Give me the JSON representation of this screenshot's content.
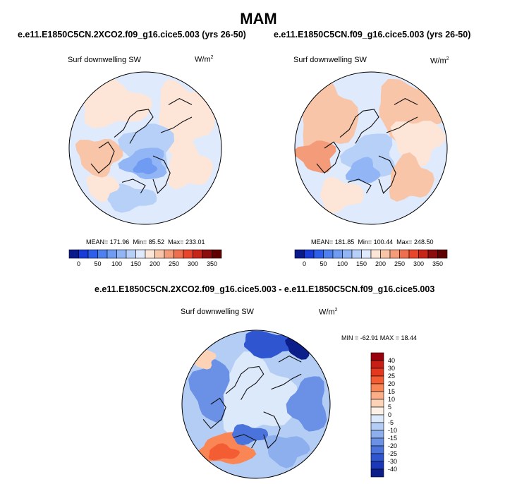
{
  "page": {
    "title": "MAM"
  },
  "panels": [
    {
      "case_title": "e.e11.E1850C5CN.2XCO2.f09_g16.cice5.003 (yrs 26-50)",
      "variable": "Surf downwelling SW",
      "units_base": "W/m",
      "units_exp": "2",
      "stats": {
        "mean_label": "MEAN=",
        "mean": "171.96",
        "min_label": "Min=",
        "min": "85.52",
        "max_label": "Max=",
        "max": "233.01"
      }
    },
    {
      "case_title": "e.e11.E1850C5CN.f09_g16.cice5.003 (yrs 26-50)",
      "variable": "Surf downwelling SW",
      "units_base": "W/m",
      "units_exp": "2",
      "stats": {
        "mean_label": "MEAN=",
        "mean": "181.85",
        "min_label": "Min=",
        "min": "100.44",
        "max_label": "Max=",
        "max": "248.50"
      }
    }
  ],
  "diff_panel": {
    "case_title": "e.e11.E1850C5CN.2XCO2.f09_g16.cice5.003 - e.e11.E1850C5CN.f09_g16.cice5.003",
    "variable": "Surf downwelling SW",
    "units_base": "W/m",
    "units_exp": "2",
    "minmax_text": "MIN = -62.91 MAX =  18.44"
  },
  "chart_data": [
    {
      "type": "heatmap",
      "projection": "north polar stereographic",
      "title": "e.e11.E1850C5CN.2XCO2.f09_g16.cice5.003 (yrs 26-50)",
      "variable": "Surf downwelling SW",
      "units": "W/m2",
      "mean": 171.96,
      "min": 85.52,
      "max": 233.01,
      "colorbar": {
        "orientation": "horizontal",
        "levels": [
          0,
          25,
          50,
          75,
          100,
          125,
          150,
          175,
          200,
          225,
          250,
          275,
          300,
          325,
          350
        ],
        "tick_labels": [
          "0",
          "50",
          "100",
          "150",
          "200",
          "250",
          "300",
          "350"
        ],
        "colors": [
          "#0a1a8c",
          "#1a3cd6",
          "#2d5fe8",
          "#4f80ef",
          "#6f9cf2",
          "#92b6f5",
          "#b7d0f8",
          "#dfeafc",
          "#fde6d8",
          "#f8c5a8",
          "#f49c7a",
          "#ef6e4e",
          "#e8452c",
          "#c6261a",
          "#8c0d0d",
          "#600000"
        ]
      }
    },
    {
      "type": "heatmap",
      "projection": "north polar stereographic",
      "title": "e.e11.E1850C5CN.f09_g16.cice5.003 (yrs 26-50)",
      "variable": "Surf downwelling SW",
      "units": "W/m2",
      "mean": 181.85,
      "min": 100.44,
      "max": 248.5,
      "colorbar": {
        "orientation": "horizontal",
        "levels": [
          0,
          25,
          50,
          75,
          100,
          125,
          150,
          175,
          200,
          225,
          250,
          275,
          300,
          325,
          350
        ],
        "tick_labels": [
          "0",
          "50",
          "100",
          "150",
          "200",
          "250",
          "300",
          "350"
        ],
        "colors": [
          "#0a1a8c",
          "#1a3cd6",
          "#2d5fe8",
          "#4f80ef",
          "#6f9cf2",
          "#92b6f5",
          "#b7d0f8",
          "#dfeafc",
          "#fde6d8",
          "#f8c5a8",
          "#f49c7a",
          "#ef6e4e",
          "#e8452c",
          "#c6261a",
          "#8c0d0d",
          "#600000"
        ]
      }
    },
    {
      "type": "heatmap",
      "projection": "north polar stereographic",
      "title": "e.e11.E1850C5CN.2XCO2.f09_g16.cice5.003 - e.e11.E1850C5CN.f09_g16.cice5.003",
      "variable": "Surf downwelling SW",
      "units": "W/m2",
      "min": -62.91,
      "max": 18.44,
      "colorbar": {
        "orientation": "vertical",
        "tick_labels": [
          "40",
          "30",
          "25",
          "20",
          "15",
          "10",
          "5",
          "0",
          "-5",
          "-10",
          "-15",
          "-20",
          "-25",
          "-30",
          "-40"
        ],
        "colors": [
          "#99000d",
          "#c81e14",
          "#e4391e",
          "#f45c34",
          "#fa8656",
          "#fcae86",
          "#fdd3b8",
          "#fdf0e6",
          "#dce9fb",
          "#b4cdf5",
          "#8dafee",
          "#6a91e6",
          "#4a73dc",
          "#2f55d0",
          "#1a38b8",
          "#0b1e8a"
        ]
      }
    }
  ]
}
